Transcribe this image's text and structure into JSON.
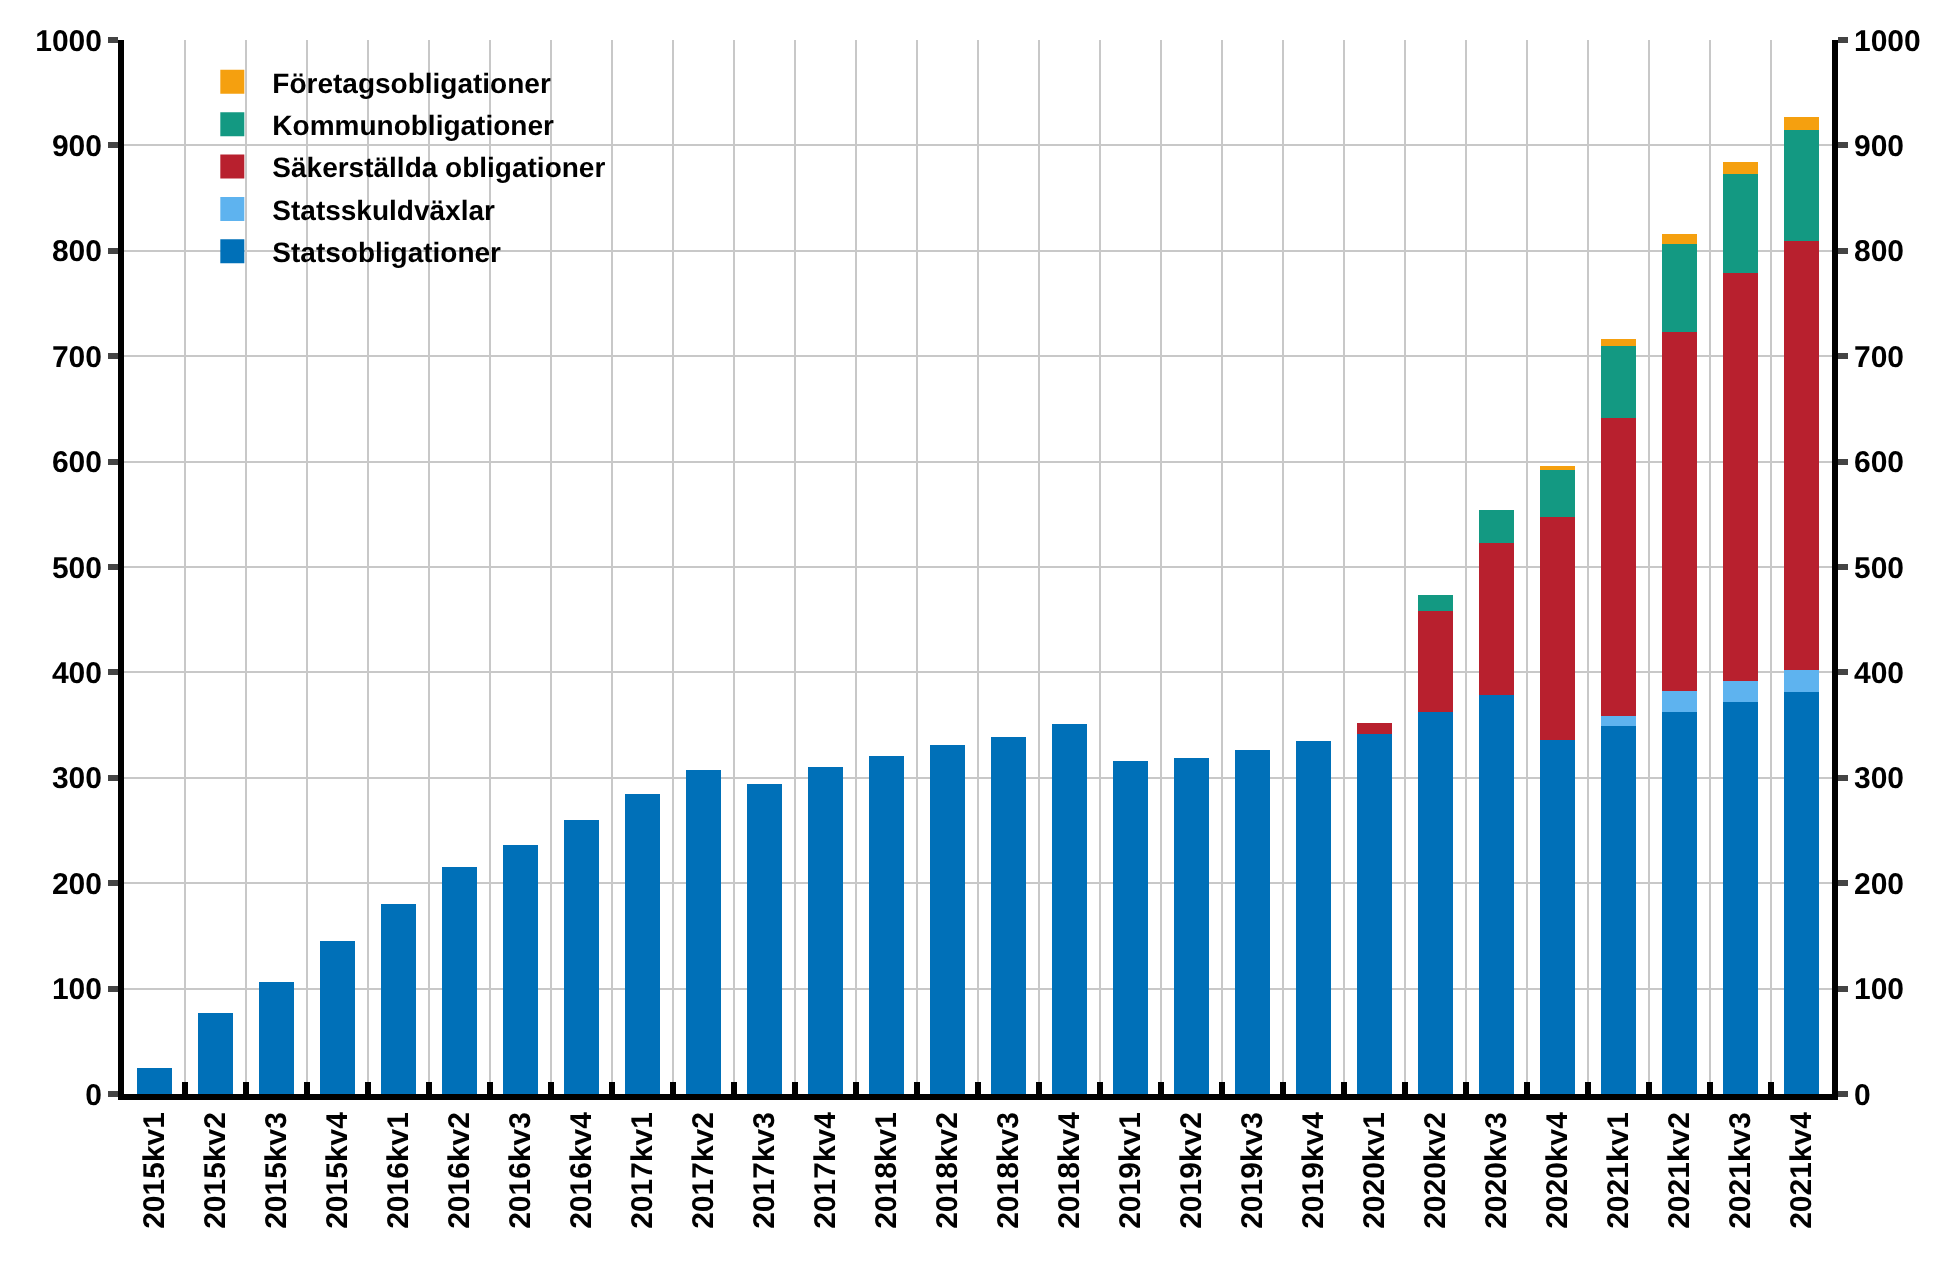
{
  "chart_data": {
    "type": "bar",
    "stacked": true,
    "categories": [
      "2015kv1",
      "2015kv2",
      "2015kv3",
      "2015kv4",
      "2016kv1",
      "2016kv2",
      "2016kv3",
      "2016kv4",
      "2017kv1",
      "2017kv2",
      "2017kv3",
      "2017kv4",
      "2018kv1",
      "2018kv2",
      "2018kv3",
      "2018kv4",
      "2019kv1",
      "2019kv2",
      "2019kv3",
      "2019kv4",
      "2020kv1",
      "2020kv2",
      "2020kv3",
      "2020kv4",
      "2021kv1",
      "2021kv2",
      "2021kv3",
      "2021kv4"
    ],
    "series": [
      {
        "name": "Statsobligationer",
        "color": "#0070b8",
        "values": [
          25,
          77,
          106,
          145,
          180,
          215,
          236,
          260,
          285,
          307,
          294,
          310,
          321,
          331,
          339,
          351,
          316,
          319,
          326,
          335,
          342,
          362,
          379,
          336,
          349,
          362,
          372,
          381
        ]
      },
      {
        "name": "Statsskuldväxlar",
        "color": "#5eb3ef",
        "values": [
          null,
          null,
          null,
          null,
          null,
          null,
          null,
          null,
          null,
          null,
          null,
          null,
          null,
          null,
          null,
          null,
          null,
          null,
          null,
          null,
          null,
          null,
          null,
          null,
          10,
          20,
          20,
          21
        ]
      },
      {
        "name": "Säkerställda obligationer",
        "color": "#b8202e",
        "values": [
          null,
          null,
          null,
          null,
          null,
          null,
          null,
          null,
          null,
          null,
          null,
          null,
          null,
          null,
          null,
          null,
          null,
          null,
          null,
          null,
          10,
          96,
          144,
          211,
          282,
          341,
          387,
          407
        ]
      },
      {
        "name": "Kommunobligationer",
        "color": "#139982",
        "values": [
          null,
          null,
          null,
          null,
          null,
          null,
          null,
          null,
          null,
          null,
          null,
          null,
          null,
          null,
          null,
          null,
          null,
          null,
          null,
          null,
          null,
          15,
          31,
          45,
          69,
          83,
          94,
          106
        ]
      },
      {
        "name": "Företagsobligationer",
        "color": "#f5a00f",
        "values": [
          null,
          null,
          null,
          null,
          null,
          null,
          null,
          null,
          null,
          null,
          null,
          null,
          null,
          null,
          null,
          null,
          null,
          null,
          null,
          null,
          null,
          null,
          null,
          4,
          6,
          10,
          11,
          12
        ]
      }
    ],
    "ylim": [
      0,
      1000
    ],
    "yticks": [
      0,
      100,
      200,
      300,
      400,
      500,
      600,
      700,
      800,
      900,
      1000
    ],
    "y2lim": [
      0,
      1000
    ],
    "y2ticks": [
      0,
      100,
      200,
      300,
      400,
      500,
      600,
      700,
      800,
      900,
      1000
    ],
    "grid": true,
    "legend": "top left"
  }
}
